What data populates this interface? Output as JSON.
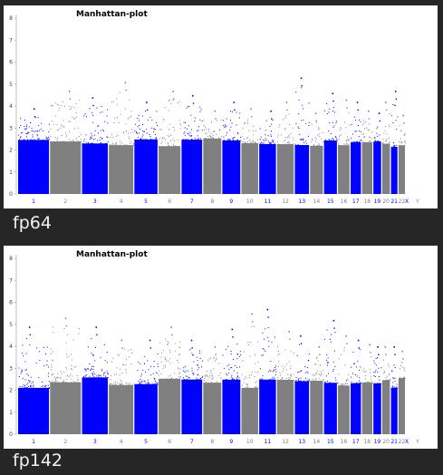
{
  "colors": {
    "background": "#262626",
    "panel": "#ffffff",
    "caption": "#f2f2f2",
    "blue": "#0000ff",
    "gray": "#808080"
  },
  "chart_data": [
    {
      "type": "scatter",
      "title": "Manhattan-plot",
      "caption": "fp64",
      "ylim": [
        0,
        8
      ],
      "yticks": [
        0,
        1,
        2,
        3,
        4,
        5,
        6,
        7,
        8
      ],
      "categories": [
        "1",
        "2",
        "3",
        "4",
        "5",
        "6",
        "7",
        "8",
        "9",
        "10",
        "11",
        "12",
        "13",
        "14",
        "15",
        "16",
        "17",
        "18",
        "19",
        "20",
        "21",
        "22",
        "X",
        "Y"
      ],
      "category_colors": [
        "blue",
        "gray",
        "blue",
        "gray",
        "blue",
        "gray",
        "blue",
        "gray",
        "blue",
        "gray",
        "blue",
        "gray",
        "blue",
        "gray",
        "blue",
        "gray",
        "blue",
        "gray",
        "blue",
        "gray",
        "blue",
        "gray",
        "blue",
        "gray"
      ],
      "chromosome_max": [
        3.9,
        4.7,
        4.4,
        5.1,
        4.2,
        4.7,
        4.5,
        3.8,
        4.2,
        3.9,
        3.8,
        4.2,
        5.3,
        3.7,
        4.6,
        4.3,
        4.2,
        3.8,
        3.7,
        4.2,
        4.7,
        3.6
      ],
      "grid": false,
      "legend": "none"
    },
    {
      "type": "scatter",
      "title": "Manhattan-plot",
      "caption": "fp142",
      "ylim": [
        0,
        8
      ],
      "yticks": [
        0,
        1,
        2,
        3,
        4,
        5,
        6,
        7,
        8
      ],
      "categories": [
        "1",
        "2",
        "3",
        "4",
        "5",
        "6",
        "7",
        "8",
        "9",
        "10",
        "11",
        "12",
        "13",
        "14",
        "15",
        "16",
        "17",
        "18",
        "19",
        "20",
        "21",
        "22",
        "X",
        "Y"
      ],
      "category_colors": [
        "blue",
        "gray",
        "blue",
        "gray",
        "blue",
        "gray",
        "blue",
        "gray",
        "blue",
        "gray",
        "blue",
        "gray",
        "blue",
        "gray",
        "blue",
        "gray",
        "blue",
        "gray",
        "blue",
        "gray",
        "blue",
        "gray",
        "blue",
        "gray"
      ],
      "chromosome_max": [
        4.9,
        5.3,
        4.9,
        4.3,
        4.3,
        4.9,
        4.3,
        4.0,
        4.8,
        5.5,
        5.7,
        4.7,
        4.5,
        4.0,
        5.2,
        4.5,
        4.3,
        4.1,
        4.0,
        4.0,
        4.0,
        3.8
      ],
      "grid": false,
      "legend": "none"
    }
  ]
}
